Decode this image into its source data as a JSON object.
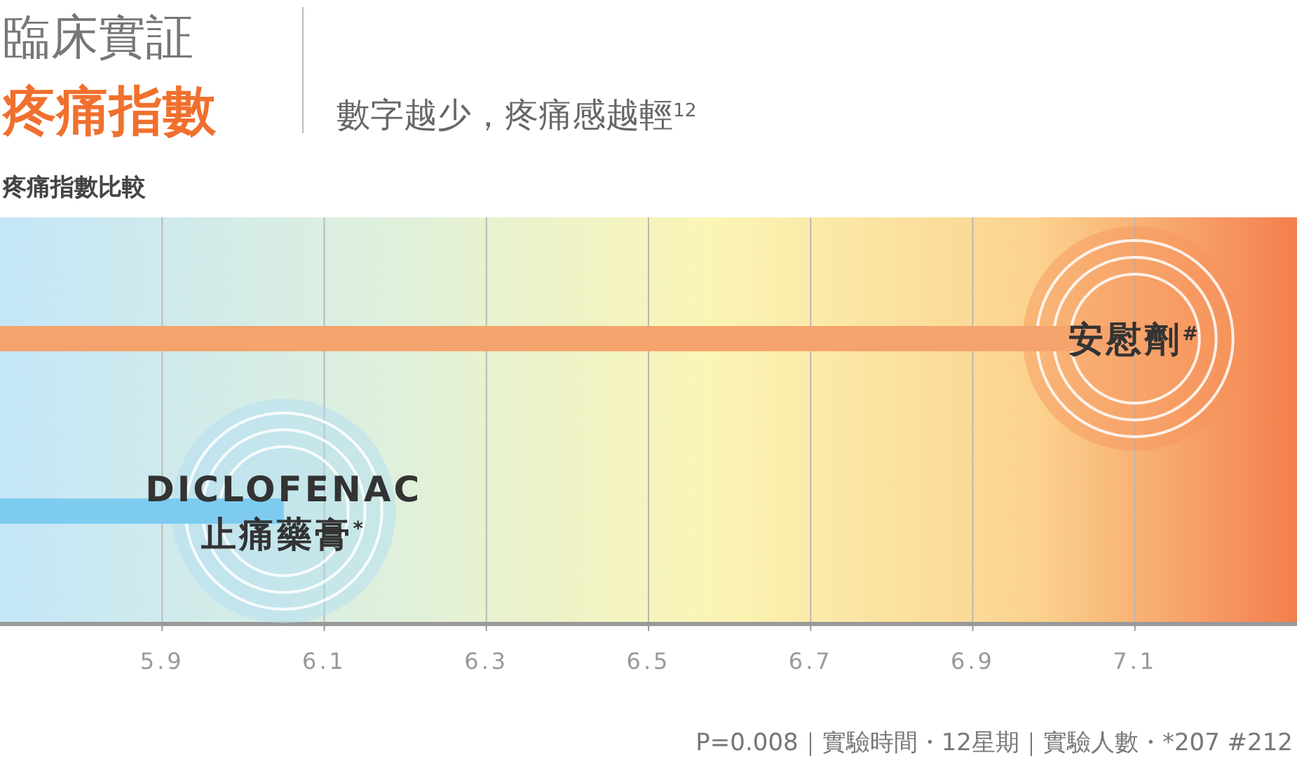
{
  "chart_data": {
    "type": "bar",
    "orientation": "horizontal",
    "title": "臨床實証",
    "subtitle": "疼痛指數",
    "annotations": [
      "數字越少，疼痛感越輕$^{12}$",
      "疼痛指數比較",
      "P=0.008｜實驗時間・12星期｜實驗人數・*207 #212"
    ],
    "categories": [
      "安慰劑$^{#}$",
      "DICLOFENAC\n止痛藥膏$^{*}$"
    ],
    "values": [
      7.1,
      6.05
    ],
    "colors": [
      "#f5a36c",
      "#7dccf0"
    ],
    "xlim": [
      5.7,
      7.3
    ],
    "xticks": [
      5.9,
      6.1,
      6.3,
      6.5,
      6.7,
      6.9,
      7.1
    ],
    "grid": "x"
  }
}
